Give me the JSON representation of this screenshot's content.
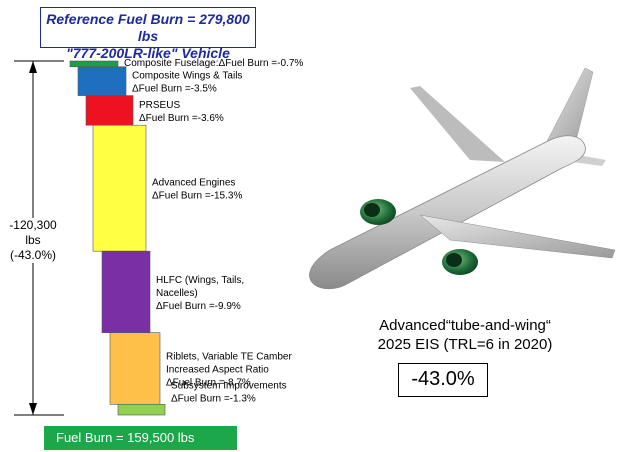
{
  "header": {
    "reference_line1": "Reference Fuel Burn = 279,800 lbs",
    "reference_line2": "\"777-200LR-like\" Vehicle"
  },
  "footer": {
    "final_label": "Fuel Burn = 159,500 lbs"
  },
  "total": {
    "line1": "-120,300 lbs",
    "line2": "(-43.0%)"
  },
  "caption": {
    "line1": "Advanced“tube-and-wing“",
    "line2": "2025 EIS (TRL=6 in 2020)",
    "result": "-43.0%"
  },
  "colors": {
    "accent_blue": "#1f2a9c",
    "final_green": "#1ba74a"
  },
  "chart_data": {
    "type": "bar",
    "subtype": "waterfall",
    "value_unit": "percent of reference fuel burn",
    "reference_fuel_burn_lbs": 279800,
    "final_fuel_burn_lbs": 159500,
    "total_reduction_lbs": -120300,
    "total_reduction_pct": -43.0,
    "ylim": [
      -43.0,
      0
    ],
    "steps": [
      {
        "name": "Composite Fuselage:",
        "lines": [
          "Composite Fuselage:ΔFuel Burn =-0.7%"
        ],
        "value": -0.7,
        "color": "#1aa04a"
      },
      {
        "name": "Composite Wings & Tails",
        "lines": [
          "Composite Wings & Tails",
          "ΔFuel Burn =-3.5%"
        ],
        "value": -3.5,
        "color": "#1f6fc0"
      },
      {
        "name": "PRSEUS",
        "lines": [
          "PRSEUS",
          "ΔFuel Burn =-3.6%"
        ],
        "value": -3.6,
        "color": "#ee1122"
      },
      {
        "name": "Advanced Engines",
        "lines": [
          "Advanced Engines",
          "ΔFuel Burn =-15.3%"
        ],
        "value": -15.3,
        "color": "#ffff44"
      },
      {
        "name": "HLFC (Wings, Tails, Nacelles)",
        "lines": [
          "HLFC (Wings, Tails,",
          "Nacelles)",
          "ΔFuel Burn =-9.9%"
        ],
        "value": -9.9,
        "color": "#7a2fa5"
      },
      {
        "name": "Riblets, Variable TE Camber Increased Aspect Ratio",
        "lines": [
          "Riblets, Variable TE Camber",
          "Increased Aspect Ratio",
          "ΔFuel Burn =-8.7%"
        ],
        "value": -8.7,
        "color": "#ffc04a"
      },
      {
        "name": "Subsystem Improvements",
        "lines": [
          "Subsystem Improvements",
          "ΔFuel Burn =-1.3%"
        ],
        "value": -1.3,
        "color": "#92d050"
      }
    ]
  }
}
